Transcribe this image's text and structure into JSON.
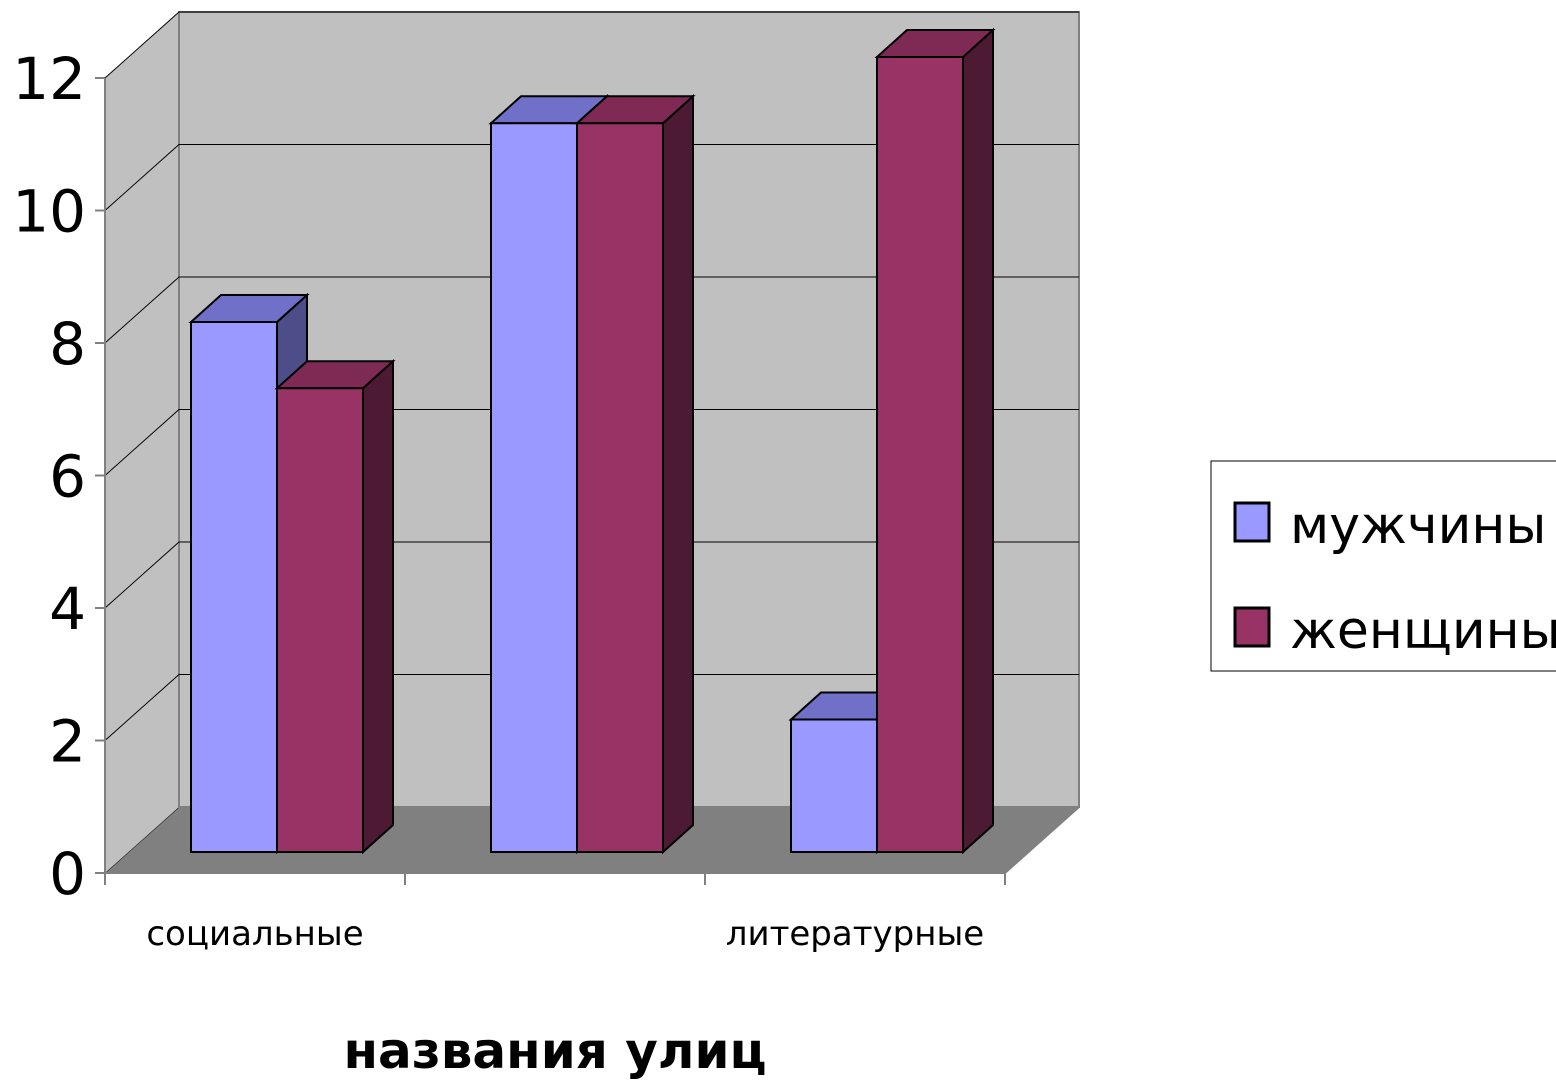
{
  "chart_data": {
    "type": "bar",
    "style": "3d-clustered-column",
    "categories": [
      "социальные",
      "",
      "литературные"
    ],
    "series": [
      {
        "name": "мужчины",
        "values": [
          8,
          11,
          2
        ]
      },
      {
        "name": "женщины",
        "values": [
          7,
          11,
          12
        ]
      }
    ],
    "xlabel": "названия улиц",
    "ylim": [
      0,
      12
    ],
    "yticks": [
      0,
      2,
      4,
      6,
      8,
      10,
      12
    ],
    "grid": true,
    "legend_position": "right",
    "colors": {
      "men_front": "#9999ff",
      "men_top": "#7070c8",
      "men_side": "#4d4d8a",
      "women_front": "#993366",
      "women_top": "#7f2a55",
      "women_side": "#4d1a33",
      "back_wall": "#c0c0c0",
      "side_wall": "#c0c0c0",
      "floor": "#808080",
      "outline": "#000000",
      "grid": "#000000"
    }
  }
}
